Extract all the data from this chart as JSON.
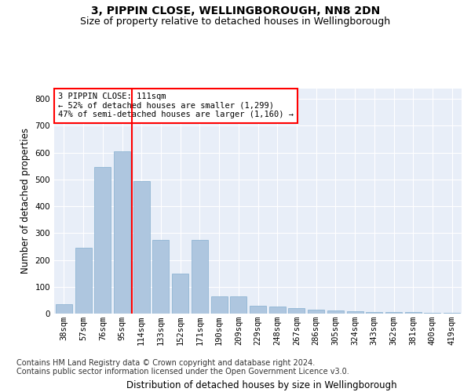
{
  "title1": "3, PIPPIN CLOSE, WELLINGBOROUGH, NN8 2DN",
  "title2": "Size of property relative to detached houses in Wellingborough",
  "xlabel": "Distribution of detached houses by size in Wellingborough",
  "ylabel": "Number of detached properties",
  "categories": [
    "38sqm",
    "57sqm",
    "76sqm",
    "95sqm",
    "114sqm",
    "133sqm",
    "152sqm",
    "171sqm",
    "190sqm",
    "209sqm",
    "229sqm",
    "248sqm",
    "267sqm",
    "286sqm",
    "305sqm",
    "324sqm",
    "343sqm",
    "362sqm",
    "381sqm",
    "400sqm",
    "419sqm"
  ],
  "values": [
    35,
    245,
    545,
    605,
    495,
    275,
    148,
    275,
    65,
    65,
    30,
    25,
    20,
    15,
    13,
    8,
    6,
    6,
    6,
    3,
    3
  ],
  "bar_color": "#aec6df",
  "bar_edge_color": "#85aecf",
  "vline_color": "red",
  "annotation_text": "3 PIPPIN CLOSE: 111sqm\n← 52% of detached houses are smaller (1,299)\n47% of semi-detached houses are larger (1,160) →",
  "annotation_box_color": "white",
  "annotation_box_edge_color": "red",
  "footnote": "Contains HM Land Registry data © Crown copyright and database right 2024.\nContains public sector information licensed under the Open Government Licence v3.0.",
  "ylim": [
    0,
    840
  ],
  "yticks": [
    0,
    100,
    200,
    300,
    400,
    500,
    600,
    700,
    800
  ],
  "bg_color": "#e8eef8",
  "grid_color": "white",
  "title1_fontsize": 10,
  "title2_fontsize": 9,
  "xlabel_fontsize": 8.5,
  "ylabel_fontsize": 8.5,
  "tick_fontsize": 7.5,
  "annotation_fontsize": 7.5,
  "footnote_fontsize": 7
}
